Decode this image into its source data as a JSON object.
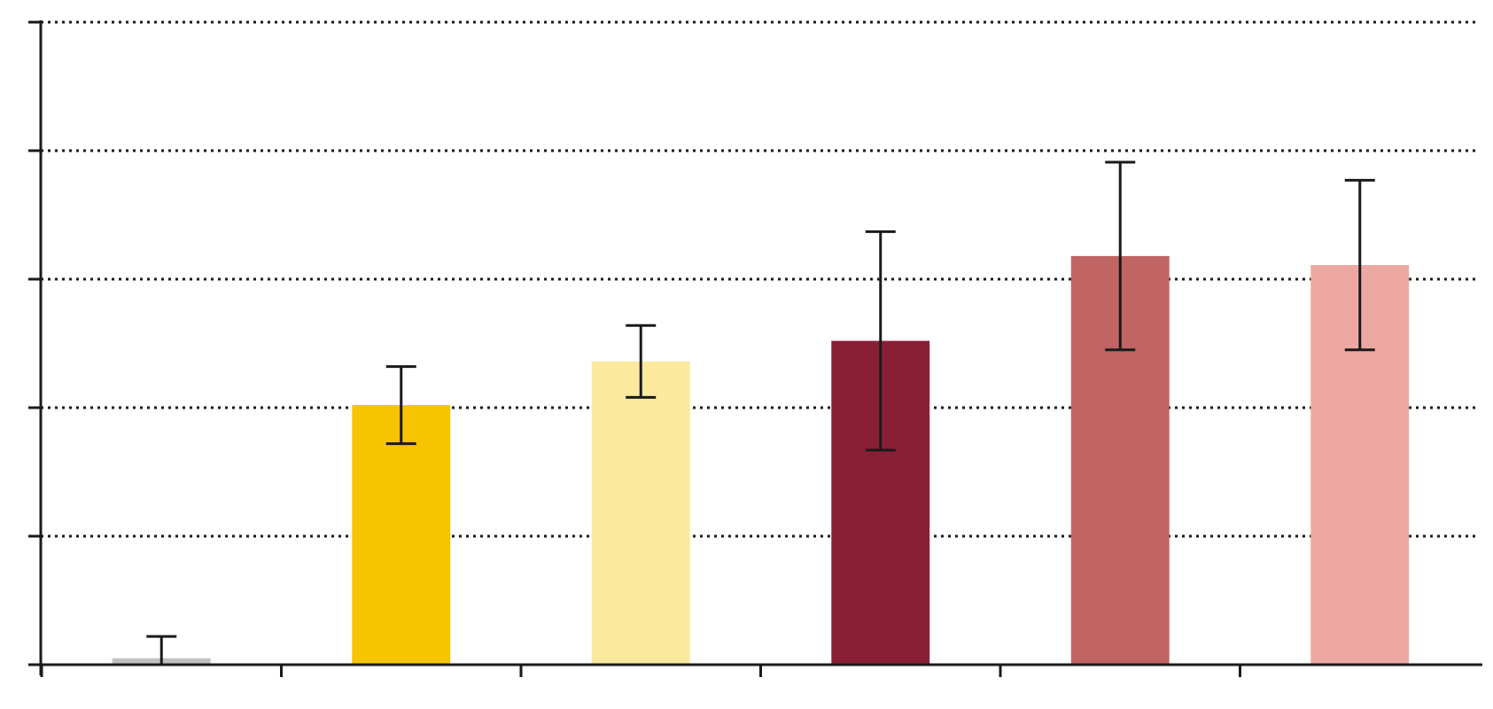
{
  "chart_data": {
    "type": "bar",
    "categories": [
      null,
      null,
      null,
      null,
      null,
      null
    ],
    "values": [
      0.05,
      2.02,
      2.36,
      2.52,
      3.18,
      3.11
    ],
    "errors": [
      0.17,
      0.3,
      0.28,
      0.85,
      0.73,
      0.66
    ],
    "colors": [
      "#c0c0c0",
      "#f6c400",
      "#fbe99d",
      "#891f35",
      "#c06464",
      "#eea8a2"
    ],
    "ylim": [
      0,
      5
    ],
    "yticks": [
      0,
      1,
      2,
      3,
      4,
      5
    ],
    "grid": true
  }
}
